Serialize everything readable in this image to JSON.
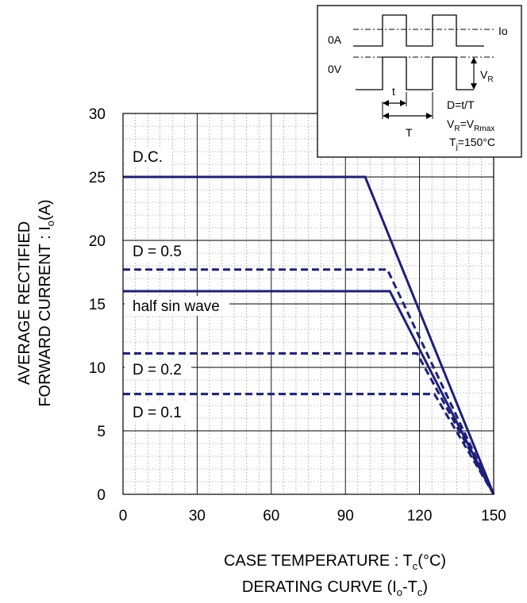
{
  "chart_data": {
    "type": "line",
    "xlabel_main": "CASE TEMPERATURE : T",
    "xlabel_sub": "c",
    "xlabel_unit": "(°C)",
    "caption_main": "DERATING CURVE (I",
    "caption_sub1": "o",
    "caption_mid": "-T",
    "caption_sub2": "c",
    "caption_end": ")",
    "ylabel_line1": "AVERAGE RECTIFIED",
    "ylabel_line2_main": "FORWARD CURRENT : I",
    "ylabel_line2_sub": "o",
    "ylabel_line2_unit": "(A)",
    "xlim": [
      0,
      150
    ],
    "ylim": [
      0,
      30
    ],
    "x_ticks": [
      0,
      30,
      60,
      90,
      120,
      150
    ],
    "y_ticks": [
      0,
      5,
      10,
      15,
      20,
      25,
      30
    ],
    "x_minor_step": 5,
    "y_minor_step": 1,
    "grid": true,
    "series": [
      {
        "name": "D.C.",
        "style": "solid",
        "points": [
          [
            0,
            25
          ],
          [
            98,
            25
          ],
          [
            150,
            0
          ]
        ]
      },
      {
        "name": "D = 0.5",
        "style": "dashed",
        "points": [
          [
            0,
            17.7
          ],
          [
            107,
            17.7
          ],
          [
            150,
            0
          ]
        ]
      },
      {
        "name": "half sin wave",
        "style": "solid",
        "points": [
          [
            0,
            16
          ],
          [
            108,
            16
          ],
          [
            150,
            0
          ]
        ]
      },
      {
        "name": "D = 0.2",
        "style": "dashed",
        "points": [
          [
            0,
            11.1
          ],
          [
            119,
            11.1
          ],
          [
            150,
            0
          ]
        ]
      },
      {
        "name": "D = 0.1",
        "style": "dashed",
        "points": [
          [
            0,
            7.9
          ],
          [
            126,
            7.9
          ],
          [
            150,
            0
          ]
        ]
      }
    ],
    "series_labels": [
      "D.C.",
      "D = 0.5",
      "half sin wave",
      "D = 0.2",
      "D = 0.1"
    ],
    "line_color": "#1f1f7a"
  },
  "inset": {
    "label_io": "Io",
    "label_0a": "0A",
    "label_0v": "0V",
    "label_t": "t",
    "label_T": "T",
    "label_vr_main": "V",
    "label_vr_sub": "R",
    "eq_d": "D=t/T",
    "eq_vr_main": "V",
    "eq_vr_sub1": "R",
    "eq_vr_mid": "=V",
    "eq_vr_sub2": "Rmax",
    "eq_tj_main": "T",
    "eq_tj_sub": "j",
    "eq_tj_end": "=150°C"
  }
}
